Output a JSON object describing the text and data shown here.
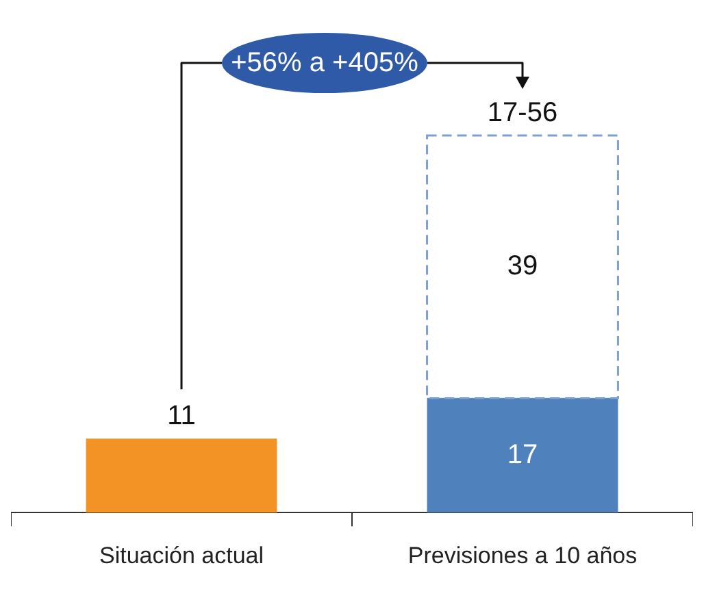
{
  "chart_data": {
    "type": "bar",
    "stacked": true,
    "categories": [
      "Situación actual",
      "Previsiones a 10 años"
    ],
    "series": [
      {
        "colors": [
          "#f39325",
          "#4f81bd"
        ],
        "values": [
          11,
          17
        ]
      },
      {
        "color": "#7f9fcf",
        "line_style": "dashed",
        "values": [
          null,
          39
        ]
      }
    ],
    "data_labels": true,
    "totals": [
      null,
      "17-56"
    ],
    "annotations": [
      "+56% a +405%"
    ],
    "legend": false,
    "grid": false
  }
}
